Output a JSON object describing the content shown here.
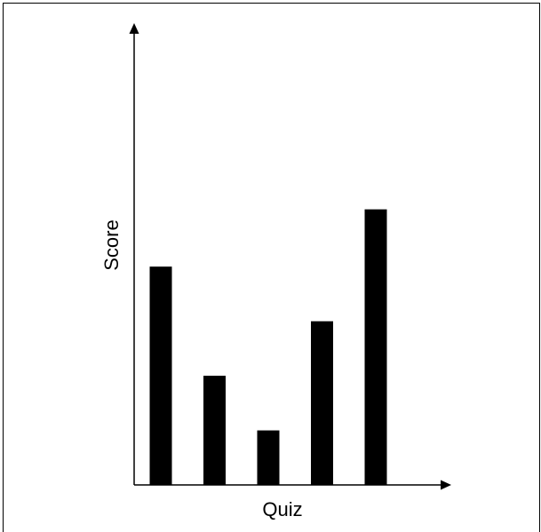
{
  "chart_data": {
    "type": "bar",
    "categories": [
      "",
      "",
      "",
      "",
      ""
    ],
    "values": [
      4,
      2,
      1,
      3,
      5.05
    ],
    "xlabel": "Quiz",
    "ylabel": "Score",
    "ylim": [
      0,
      8.3
    ],
    "grid": false,
    "legend": "none",
    "bar_color": "#000000",
    "axis_color": "#000000"
  }
}
